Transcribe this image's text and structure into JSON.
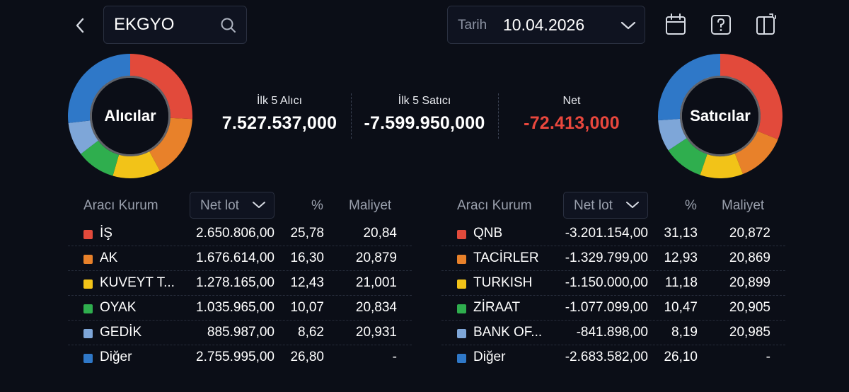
{
  "header": {
    "search_value": "EKGYO",
    "date_label": "Tarih",
    "date_value": "10.04.2026"
  },
  "icons": {
    "back": "chevron-left-icon",
    "search": "search-icon",
    "date_dropdown": "chevron-down-icon",
    "calendar": "calendar-icon",
    "help": "question-icon",
    "panel": "panel-icon"
  },
  "summary": {
    "buyers_title": "İlk 5 Alıcı",
    "buyers_value": "7.527.537,000",
    "sellers_title": "İlk 5 Satıcı",
    "sellers_value": "-7.599.950,000",
    "net_title": "Net",
    "net_value": "-72.413,000",
    "net_color": "#e8473d"
  },
  "buyers": {
    "label": "Alıcılar",
    "columns": {
      "broker": "Aracı Kurum",
      "select": "Net lot",
      "pct": "%",
      "cost": "Maliyet"
    },
    "rows": [
      {
        "color": "#e24a3b",
        "name": "İŞ",
        "lot": "2.650.806,00",
        "pct": "25,78",
        "cost": "20,84"
      },
      {
        "color": "#e8812a",
        "name": "AK",
        "lot": "1.676.614,00",
        "pct": "16,30",
        "cost": "20,879"
      },
      {
        "color": "#f2c318",
        "name": "KUVEYT T...",
        "lot": "1.278.165,00",
        "pct": "12,43",
        "cost": "21,001"
      },
      {
        "color": "#2fae4e",
        "name": "OYAK",
        "lot": "1.035.965,00",
        "pct": "10,07",
        "cost": "20,834"
      },
      {
        "color": "#7ea6d8",
        "name": "GEDİK",
        "lot": "885.987,00",
        "pct": "8,62",
        "cost": "20,931"
      },
      {
        "color": "#2f78c8",
        "name": "Diğer",
        "lot": "2.755.995,00",
        "pct": "26,80",
        "cost": "-"
      }
    ]
  },
  "sellers": {
    "label": "Satıcılar",
    "columns": {
      "broker": "Aracı Kurum",
      "select": "Net lot",
      "pct": "%",
      "cost": "Maliyet"
    },
    "rows": [
      {
        "color": "#e24a3b",
        "name": "QNB",
        "lot": "-3.201.154,00",
        "pct": "31,13",
        "cost": "20,872"
      },
      {
        "color": "#e8812a",
        "name": "TACİRLER",
        "lot": "-1.329.799,00",
        "pct": "12,93",
        "cost": "20,869"
      },
      {
        "color": "#f2c318",
        "name": "TURKISH",
        "lot": "-1.150.000,00",
        "pct": "11,18",
        "cost": "20,899"
      },
      {
        "color": "#2fae4e",
        "name": "ZİRAAT",
        "lot": "-1.077.099,00",
        "pct": "10,47",
        "cost": "20,905"
      },
      {
        "color": "#7ea6d8",
        "name": "BANK OF...",
        "lot": "-841.898,00",
        "pct": "8,19",
        "cost": "20,985"
      },
      {
        "color": "#2f78c8",
        "name": "Diğer",
        "lot": "-2.683.582,00",
        "pct": "26,10",
        "cost": "-"
      }
    ]
  }
}
